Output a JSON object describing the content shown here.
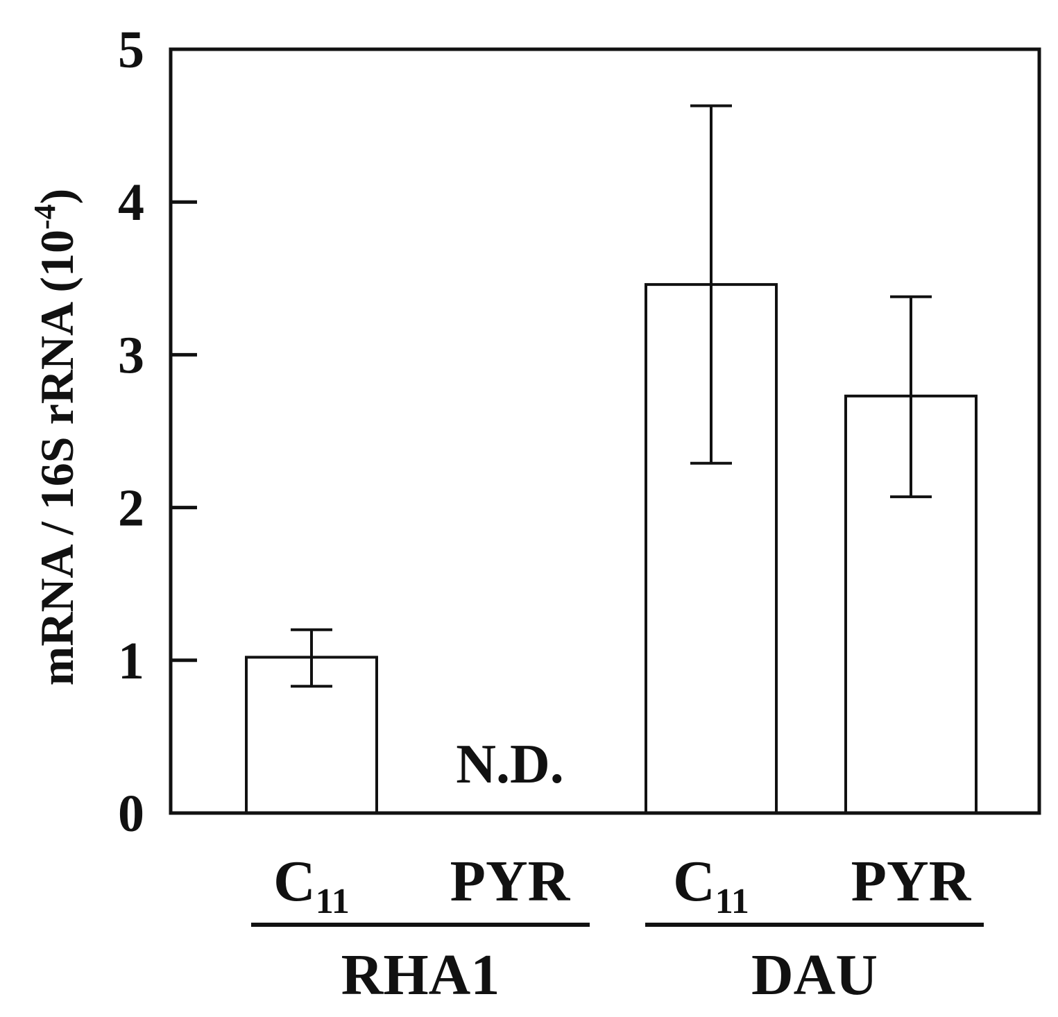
{
  "chart_data": {
    "type": "bar",
    "title": "",
    "xlabel": "",
    "ylabel": {
      "main": "mRNA / 16S rRNA (10",
      "exponent": "-4",
      "close": ")"
    },
    "ylim": [
      0,
      5
    ],
    "yticks": [
      "0",
      "1",
      "2",
      "3",
      "4",
      "5"
    ],
    "grid": false,
    "groups": [
      "RHA1",
      "DAU"
    ],
    "categories": [
      {
        "base": "C",
        "sub": "11",
        "group": "RHA1"
      },
      {
        "base": "PYR",
        "sub": "",
        "group": "RHA1"
      },
      {
        "base": "C",
        "sub": "11",
        "group": "DAU"
      },
      {
        "base": "PYR",
        "sub": "",
        "group": "DAU"
      }
    ],
    "values": [
      1.02,
      null,
      3.46,
      2.73
    ],
    "error_low": [
      0.83,
      null,
      2.29,
      2.07
    ],
    "error_high": [
      1.2,
      null,
      4.63,
      3.38
    ],
    "annotations": [
      {
        "text": "N.D.",
        "category_index": 1
      }
    ],
    "colors": {
      "bar_fill": "#ffffff",
      "stroke": "#111111"
    }
  }
}
